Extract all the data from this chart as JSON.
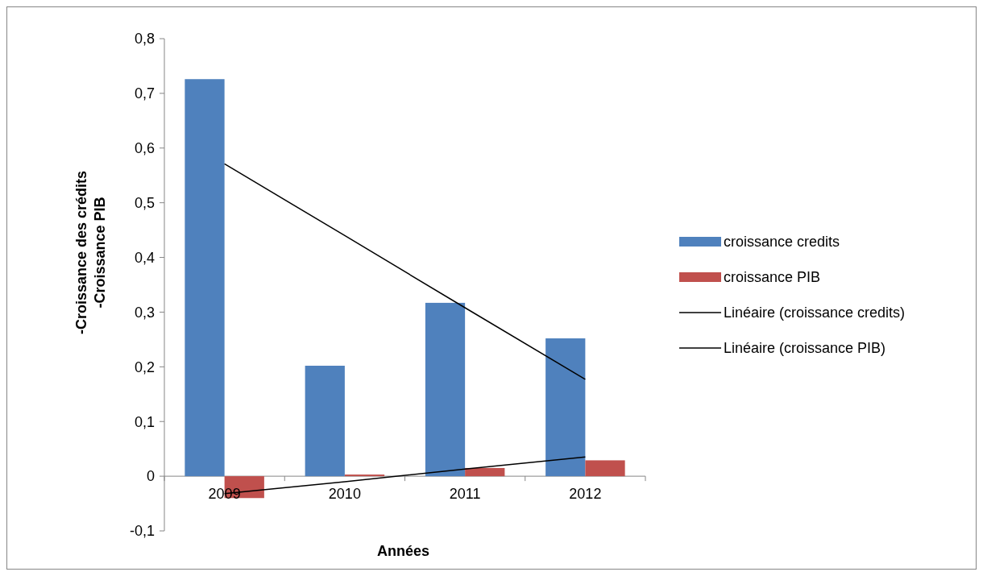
{
  "chart_data": {
    "type": "bar",
    "categories": [
      "2009",
      "2010",
      "2011",
      "2012"
    ],
    "xlabel": "Années",
    "ylabel": "-Croissance des crédits\n-Croissance PIB",
    "ylim": [
      -0.1,
      0.8
    ],
    "yticks": [
      {
        "value": -0.1,
        "label": "-0,1"
      },
      {
        "value": 0,
        "label": "0"
      },
      {
        "value": 0.1,
        "label": "0,1"
      },
      {
        "value": 0.2,
        "label": "0,2"
      },
      {
        "value": 0.3,
        "label": "0,3"
      },
      {
        "value": 0.4,
        "label": "0,4"
      },
      {
        "value": 0.5,
        "label": "0,5"
      },
      {
        "value": 0.6,
        "label": "0,6"
      },
      {
        "value": 0.7,
        "label": "0,7"
      },
      {
        "value": 0.8,
        "label": "0,8"
      }
    ],
    "legend": "right",
    "grid": false,
    "marker": "none",
    "series": [
      {
        "name": "croissance credits",
        "color": "#4f81bd",
        "values": [
          0.726,
          0.202,
          0.317,
          0.252
        ]
      },
      {
        "name": "croissance PIB",
        "color": "#c0504d",
        "values": [
          -0.04,
          0.003,
          0.015,
          0.029
        ]
      },
      {
        "name": "Linéaire (croissance credits)",
        "type": "line",
        "color": "#000000",
        "values": [
          0.571,
          0.44,
          0.308,
          0.177
        ]
      },
      {
        "name": "Linéaire (croissance PIB)",
        "type": "line",
        "color": "#000000",
        "values": [
          -0.032,
          -0.01,
          0.013,
          0.035
        ]
      }
    ]
  }
}
